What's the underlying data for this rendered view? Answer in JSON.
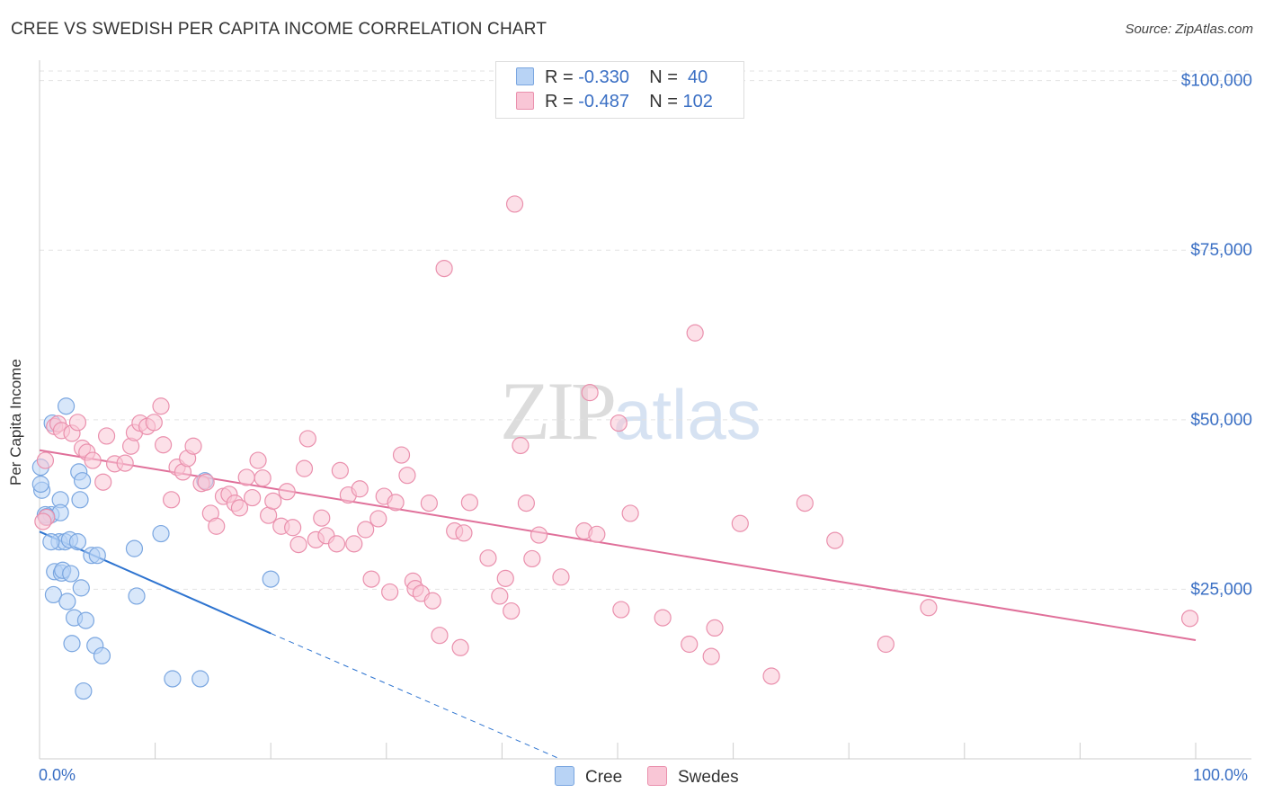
{
  "title": "CREE VS SWEDISH PER CAPITA INCOME CORRELATION CHART",
  "source": "Source: ZipAtlas.com",
  "watermark": {
    "zip": "ZIP",
    "atlas": "atlas"
  },
  "legend_top": [
    {
      "r_label": "R = ",
      "r_value": "-0.330",
      "n_label": "N = ",
      "n_value": " 40",
      "color": "#b8d3f5",
      "border": "#7aa6e0"
    },
    {
      "r_label": "R = ",
      "r_value": "-0.487",
      "n_label": "N = ",
      "n_value": "102",
      "color": "#f9c6d6",
      "border": "#ea90ad"
    }
  ],
  "legend_bottom": [
    {
      "label": "Cree",
      "color": "#b8d3f5",
      "border": "#7aa6e0"
    },
    {
      "label": "Swedes",
      "color": "#f9c6d6",
      "border": "#ea90ad"
    }
  ],
  "chart_data": {
    "type": "scatter",
    "title": "CREE VS SWEDISH PER CAPITA INCOME CORRELATION CHART",
    "xlabel": "",
    "ylabel": "Per Capita Income",
    "xlim": [
      0,
      100
    ],
    "ylim": [
      0,
      103000
    ],
    "x_tick_labels": [
      "0.0%",
      "100.0%"
    ],
    "y_ticks": [
      25000,
      50000,
      75000,
      100000
    ],
    "y_tick_labels": [
      "$25,000",
      "$50,000",
      "$75,000",
      "$100,000"
    ],
    "grid": true,
    "series": [
      {
        "name": "Cree",
        "color": "#7aa6e0",
        "fill": "#b8d3f5",
        "line_color": "#2e74d0",
        "trend": {
          "x0": 0,
          "y0": 33500,
          "x1": 20,
          "y1": 18500,
          "dash_to_x": 45,
          "dash_to_y": 0
        },
        "points": [
          [
            0.2,
            39600
          ],
          [
            1.0,
            36000
          ],
          [
            1.1,
            49500
          ],
          [
            1.3,
            27600
          ],
          [
            1.2,
            24200
          ],
          [
            1.7,
            32000
          ],
          [
            1.8,
            38200
          ],
          [
            1.8,
            36300
          ],
          [
            1.9,
            27400
          ],
          [
            2.0,
            27800
          ],
          [
            2.2,
            32000
          ],
          [
            2.3,
            52000
          ],
          [
            2.4,
            23200
          ],
          [
            2.6,
            32300
          ],
          [
            2.7,
            27300
          ],
          [
            2.8,
            17000
          ],
          [
            3.0,
            20800
          ],
          [
            3.3,
            32000
          ],
          [
            3.4,
            42300
          ],
          [
            3.5,
            38200
          ],
          [
            3.6,
            25200
          ],
          [
            3.7,
            41000
          ],
          [
            3.8,
            10000
          ],
          [
            4.0,
            20400
          ],
          [
            4.5,
            30000
          ],
          [
            4.8,
            16700
          ],
          [
            5.0,
            30000
          ],
          [
            5.4,
            15200
          ],
          [
            8.2,
            31000
          ],
          [
            8.4,
            24000
          ],
          [
            10.5,
            33200
          ],
          [
            11.5,
            11800
          ],
          [
            13.9,
            11800
          ],
          [
            14.3,
            41000
          ],
          [
            0.1,
            40500
          ],
          [
            0.5,
            36000
          ],
          [
            0.6,
            35700
          ],
          [
            1.0,
            32000
          ],
          [
            20.0,
            26500
          ],
          [
            0.1,
            43000
          ]
        ]
      },
      {
        "name": "Swedes",
        "color": "#ea90ad",
        "fill": "#f9c6d6",
        "line_color": "#e0709a",
        "trend": {
          "x0": 0,
          "y0": 45500,
          "x1": 100,
          "y1": 17500
        },
        "points": [
          [
            0.5,
            44000
          ],
          [
            0.6,
            35600
          ],
          [
            1.3,
            49000
          ],
          [
            1.6,
            49400
          ],
          [
            1.9,
            48400
          ],
          [
            2.8,
            48000
          ],
          [
            3.3,
            49600
          ],
          [
            3.7,
            45800
          ],
          [
            4.1,
            45200
          ],
          [
            4.6,
            44000
          ],
          [
            5.5,
            40800
          ],
          [
            5.8,
            47600
          ],
          [
            6.5,
            43500
          ],
          [
            7.4,
            43600
          ],
          [
            7.9,
            46100
          ],
          [
            8.2,
            48100
          ],
          [
            8.7,
            49500
          ],
          [
            9.3,
            49000
          ],
          [
            9.9,
            49600
          ],
          [
            10.5,
            52000
          ],
          [
            10.7,
            46300
          ],
          [
            11.4,
            38200
          ],
          [
            11.9,
            43000
          ],
          [
            12.4,
            42300
          ],
          [
            12.8,
            44300
          ],
          [
            13.3,
            46100
          ],
          [
            14.0,
            40600
          ],
          [
            14.4,
            40800
          ],
          [
            14.8,
            36200
          ],
          [
            15.3,
            34300
          ],
          [
            15.9,
            38700
          ],
          [
            16.4,
            39000
          ],
          [
            16.9,
            37700
          ],
          [
            17.3,
            37000
          ],
          [
            17.9,
            41500
          ],
          [
            18.4,
            38500
          ],
          [
            18.9,
            44000
          ],
          [
            19.3,
            41400
          ],
          [
            19.8,
            35900
          ],
          [
            20.2,
            38000
          ],
          [
            20.9,
            34300
          ],
          [
            21.4,
            39400
          ],
          [
            21.9,
            34100
          ],
          [
            22.4,
            31600
          ],
          [
            22.9,
            42800
          ],
          [
            23.2,
            47200
          ],
          [
            23.9,
            32300
          ],
          [
            24.4,
            35500
          ],
          [
            24.8,
            32900
          ],
          [
            25.7,
            31700
          ],
          [
            26.0,
            42500
          ],
          [
            26.7,
            38900
          ],
          [
            27.2,
            31700
          ],
          [
            27.7,
            39800
          ],
          [
            28.2,
            33800
          ],
          [
            28.7,
            26500
          ],
          [
            29.3,
            35400
          ],
          [
            29.8,
            38700
          ],
          [
            30.3,
            24600
          ],
          [
            30.8,
            37800
          ],
          [
            31.3,
            44800
          ],
          [
            31.8,
            41800
          ],
          [
            32.3,
            26200
          ],
          [
            32.5,
            25100
          ],
          [
            33.0,
            24400
          ],
          [
            33.7,
            37700
          ],
          [
            34.0,
            23300
          ],
          [
            34.6,
            18200
          ],
          [
            35.0,
            72300
          ],
          [
            35.9,
            33600
          ],
          [
            36.4,
            16400
          ],
          [
            36.7,
            33300
          ],
          [
            37.2,
            37800
          ],
          [
            38.8,
            29600
          ],
          [
            39.8,
            24000
          ],
          [
            40.3,
            26600
          ],
          [
            40.8,
            21800
          ],
          [
            41.1,
            81800
          ],
          [
            41.6,
            46200
          ],
          [
            42.1,
            37700
          ],
          [
            42.6,
            29500
          ],
          [
            43.2,
            33000
          ],
          [
            45.1,
            26800
          ],
          [
            47.1,
            33600
          ],
          [
            47.6,
            54000
          ],
          [
            48.2,
            33100
          ],
          [
            50.1,
            49500
          ],
          [
            50.3,
            22000
          ],
          [
            51.1,
            36200
          ],
          [
            53.9,
            20800
          ],
          [
            56.2,
            16900
          ],
          [
            56.7,
            62800
          ],
          [
            58.1,
            15100
          ],
          [
            58.4,
            19300
          ],
          [
            60.6,
            34700
          ],
          [
            63.3,
            12200
          ],
          [
            66.2,
            37700
          ],
          [
            68.8,
            32200
          ],
          [
            73.2,
            16900
          ],
          [
            76.9,
            22300
          ],
          [
            99.5,
            20700
          ],
          [
            0.3,
            35000
          ]
        ]
      }
    ]
  }
}
